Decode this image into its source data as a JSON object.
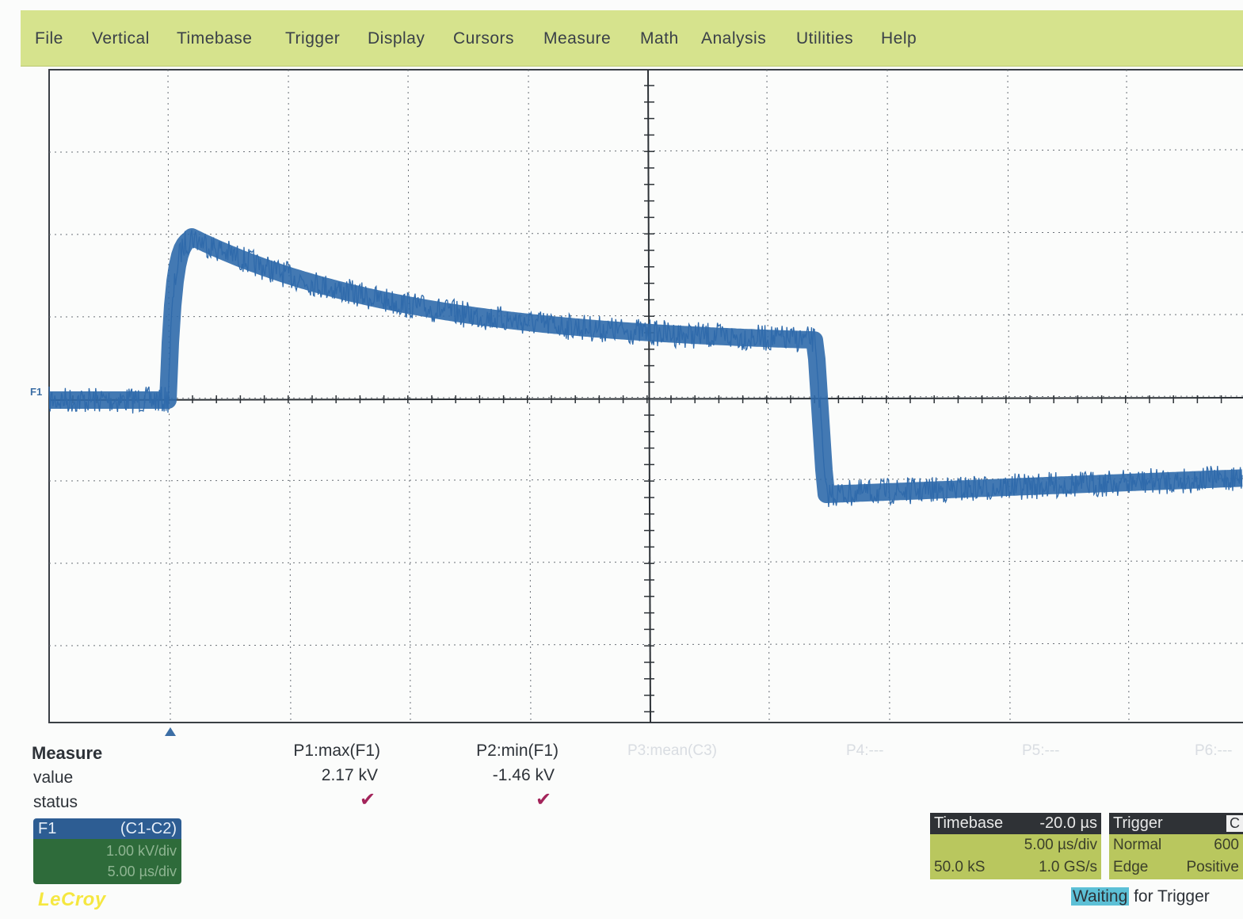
{
  "menu": {
    "items": [
      "File",
      "Vertical",
      "Timebase",
      "Trigger",
      "Display",
      "Cursors",
      "Measure",
      "Math",
      "Analysis",
      "Utilities",
      "Help"
    ]
  },
  "trace": {
    "label": "F1",
    "color": "#2f6aab",
    "description_levels_kV": {
      "baseline_before": 0.0,
      "peak": 2.0,
      "level_before_drop": 0.65,
      "level_after_drop": -1.15,
      "level_end": -0.95
    }
  },
  "measure": {
    "title": "Measure",
    "row_value": "value",
    "row_status": "status",
    "params": [
      {
        "name": "P1:max(F1)",
        "value": "2.17 kV",
        "status": "✔"
      },
      {
        "name": "P2:min(F1)",
        "value": "-1.46 kV",
        "status": "✔"
      }
    ],
    "inactive": [
      "P3:mean(C3)",
      "P4:---",
      "P5:---",
      "P6:---"
    ]
  },
  "channel": {
    "name": "F1",
    "source": "(C1-C2)",
    "vdiv": "1.00 kV/div",
    "hdiv": "5.00 µs/div"
  },
  "timebase": {
    "label": "Timebase",
    "delay": "-20.0 µs",
    "per_div": "5.00 µs/div",
    "samples": "50.0 kS",
    "rate": "1.0 GS/s"
  },
  "trigger": {
    "label": "Trigger",
    "channel": "C",
    "mode": "Normal",
    "level": "600",
    "type": "Edge",
    "slope": "Positive"
  },
  "status": {
    "highlight": "Waiting",
    "rest": " for Trigger"
  },
  "brand": "LeCroy",
  "colors": {
    "menubar": "#d6e38d",
    "grid": "#3a3f45",
    "trace": "#2f6aab",
    "channel_head": "#2d5d93",
    "channel_body": "#2e6b3a"
  }
}
